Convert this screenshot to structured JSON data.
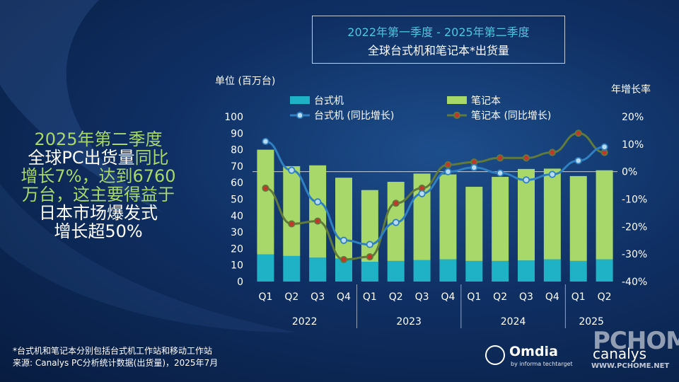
{
  "title": {
    "line1": "2022年第一季度 - 2025年第二季度",
    "line2": "全球台式机和笔记本*出货量"
  },
  "callout": {
    "line1": "2025年第二季度",
    "line2a": "全球PC出货量",
    "line2b": "同比",
    "line3": "增长7%，达到6760",
    "line4": "万台，这主要得益于",
    "line5": "日本市场爆发式",
    "line6": "增长超50%"
  },
  "footnote": {
    "line1": "*台式机和笔记本分别包括台式机工作站和移动工作站",
    "line2": "来源: Canalys PC分析统计数据(出货量)，2025年7月"
  },
  "logos": {
    "omdia": "Omdia",
    "omdia_sub": "by informa techtarget",
    "canalys": "canalys",
    "watermark": "PCHOME",
    "watermark_url": "WWW.PCHOME.NET"
  },
  "colors": {
    "desktop": "#1fb2c6",
    "notebook": "#a8d86a",
    "desktop_line": "#2f7fc1",
    "notebook_line": "#5f7a3a",
    "desktop_marker": "#b7dcf2",
    "notebook_marker": "#c0392b",
    "title_accent": "#4cc6e0"
  },
  "chart_data": {
    "type": "bar",
    "stacked": true,
    "categories": [
      "Q1",
      "Q2",
      "Q3",
      "Q4",
      "Q1",
      "Q2",
      "Q3",
      "Q4",
      "Q1",
      "Q2",
      "Q3",
      "Q4",
      "Q1",
      "Q2"
    ],
    "years": [
      {
        "label": "2022",
        "quarters": 4
      },
      {
        "label": "2023",
        "quarters": 4
      },
      {
        "label": "2024",
        "quarters": 4
      },
      {
        "label": "2025",
        "quarters": 2
      }
    ],
    "ylabel": "单位 (百万台)",
    "ylim": [
      0,
      100
    ],
    "yticks": [
      "0",
      "10",
      "20",
      "30",
      "40",
      "50",
      "60",
      "70",
      "80",
      "90",
      "100"
    ],
    "y2label": "年增长率",
    "y2lim": [
      -40,
      20
    ],
    "y2ticks": [
      "20%",
      "10%",
      "0%",
      "-10%",
      "-20%",
      "-30%",
      "-40%"
    ],
    "series": [
      {
        "name": "台式机",
        "kind": "bar",
        "values": [
          16.5,
          15.5,
          14.5,
          14,
          12,
          12.5,
          13,
          13.5,
          12.5,
          12.5,
          12.8,
          13.5,
          12.5,
          13.5
        ]
      },
      {
        "name": "笔记本",
        "kind": "bar",
        "values": [
          63.5,
          54.5,
          56,
          49,
          43.5,
          48,
          52.5,
          51.5,
          45,
          51,
          55.5,
          55,
          51.5,
          54
        ]
      },
      {
        "name": "台式机 (同比增长)",
        "kind": "line",
        "axis": "right",
        "values": [
          11,
          0.5,
          -11,
          -25,
          -26.5,
          -18.5,
          -8,
          0,
          1.5,
          -0.5,
          -3,
          -1,
          4,
          9
        ]
      },
      {
        "name": "笔记本 (同比增长)",
        "kind": "line",
        "axis": "right",
        "values": [
          -6,
          -19,
          -18,
          -32,
          -31,
          -11.5,
          -6,
          2.5,
          3.5,
          5,
          5,
          7,
          14,
          7
        ]
      }
    ],
    "legend": [
      "台式机",
      "笔记本",
      "台式机 (同比增长)",
      "笔记本 (同比增长)"
    ],
    "legend_position": "top"
  }
}
